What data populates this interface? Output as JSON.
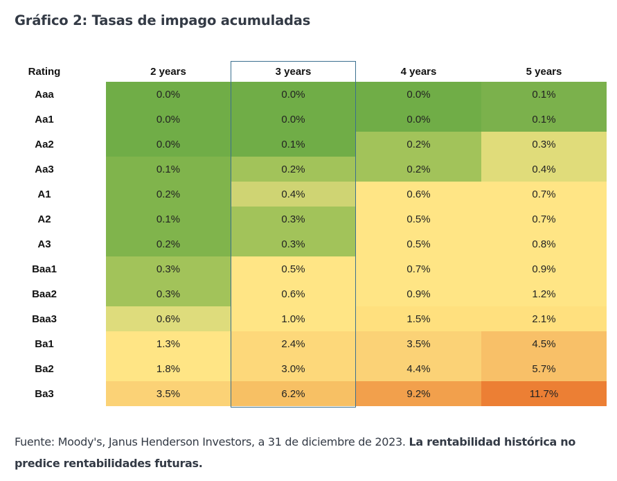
{
  "title": "Gráfico 2: Tasas de impago acumuladas",
  "chart_data": {
    "type": "heatmap",
    "title": "Gráfico 2: Tasas de impago acumuladas",
    "row_header": "Rating",
    "columns": [
      "2 years",
      "3 years",
      "4 years",
      "5 years"
    ],
    "highlighted_column": "3 years",
    "rows": [
      {
        "rating": "Aaa",
        "values": [
          "0.0%",
          "0.0%",
          "0.0%",
          "0.1%"
        ],
        "colors": [
          "#70ad47",
          "#70ad47",
          "#70ad47",
          "#7bb14c"
        ]
      },
      {
        "rating": "Aa1",
        "values": [
          "0.0%",
          "0.0%",
          "0.0%",
          "0.1%"
        ],
        "colors": [
          "#70ad47",
          "#70ad47",
          "#70ad47",
          "#7bb14c"
        ]
      },
      {
        "rating": "Aa2",
        "values": [
          "0.0%",
          "0.1%",
          "0.2%",
          "0.3%"
        ],
        "colors": [
          "#70ad47",
          "#70ad47",
          "#a2c35a",
          "#e0dc7a"
        ]
      },
      {
        "rating": "Aa3",
        "values": [
          "0.1%",
          "0.2%",
          "0.2%",
          "0.4%"
        ],
        "colors": [
          "#80b44c",
          "#a2c35a",
          "#a2c35a",
          "#e0dc7a"
        ]
      },
      {
        "rating": "A1",
        "values": [
          "0.2%",
          "0.4%",
          "0.6%",
          "0.7%"
        ],
        "colors": [
          "#80b44c",
          "#cfd473",
          "#ffe585",
          "#ffe585"
        ]
      },
      {
        "rating": "A2",
        "values": [
          "0.1%",
          "0.3%",
          "0.5%",
          "0.7%"
        ],
        "colors": [
          "#80b44c",
          "#a2c35a",
          "#ffe585",
          "#ffe585"
        ]
      },
      {
        "rating": "A3",
        "values": [
          "0.2%",
          "0.3%",
          "0.5%",
          "0.8%"
        ],
        "colors": [
          "#80b44c",
          "#a2c35a",
          "#ffe585",
          "#ffe585"
        ]
      },
      {
        "rating": "Baa1",
        "values": [
          "0.3%",
          "0.5%",
          "0.7%",
          "0.9%"
        ],
        "colors": [
          "#a2c35a",
          "#ffe585",
          "#ffe585",
          "#ffe585"
        ]
      },
      {
        "rating": "Baa2",
        "values": [
          "0.3%",
          "0.6%",
          "0.9%",
          "1.2%"
        ],
        "colors": [
          "#a2c35a",
          "#ffe585",
          "#ffe585",
          "#ffe585"
        ]
      },
      {
        "rating": "Baa3",
        "values": [
          "0.6%",
          "1.0%",
          "1.5%",
          "2.1%"
        ],
        "colors": [
          "#dedc7c",
          "#ffe585",
          "#ffe07e",
          "#ffe07e"
        ]
      },
      {
        "rating": "Ba1",
        "values": [
          "1.3%",
          "2.4%",
          "3.5%",
          "4.5%"
        ],
        "colors": [
          "#ffe585",
          "#fdd87a",
          "#fbd276",
          "#f8c068"
        ]
      },
      {
        "rating": "Ba2",
        "values": [
          "1.8%",
          "3.0%",
          "4.4%",
          "5.7%"
        ],
        "colors": [
          "#ffe585",
          "#fdd87a",
          "#fbd276",
          "#f8c068"
        ]
      },
      {
        "rating": "Ba3",
        "values": [
          "3.5%",
          "6.2%",
          "9.2%",
          "11.7%"
        ],
        "colors": [
          "#fbd276",
          "#f7c064",
          "#f2a04c",
          "#ec7f34"
        ]
      }
    ]
  },
  "footer": {
    "source": "Fuente: Moody's, Janus Henderson Investors, a 31 de diciembre de 2023. ",
    "disclaimer": "La rentabilidad histórica no predice rentabilidades futuras."
  }
}
